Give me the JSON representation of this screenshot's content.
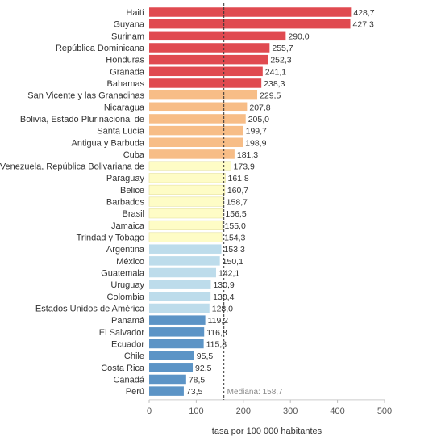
{
  "chart_data": {
    "type": "bar",
    "orientation": "horizontal",
    "categories": [
      "Haití",
      "Guyana",
      "Surinam",
      "República Dominicana",
      "Honduras",
      "Granada",
      "Bahamas",
      "San Vicente y las Granadinas",
      "Nicaragua",
      "Bolivia, Estado Plurinacional de",
      "Santa Lucía",
      "Antigua y Barbuda",
      "Cuba",
      "Venezuela, República Bolivariana de",
      "Paraguay",
      "Belice",
      "Barbados",
      "Brasil",
      "Jamaica",
      "Trindad y Tobago",
      "Argentina",
      "México",
      "Guatemala",
      "Uruguay",
      "Colombia",
      "Estados Unidos de América",
      "Panamá",
      "El Salvador",
      "Ecuador",
      "Chile",
      "Costa Rica",
      "Canadá",
      "Perú"
    ],
    "values": [
      428.7,
      427.3,
      290.0,
      255.7,
      252.3,
      241.1,
      238.3,
      229.5,
      207.8,
      205.0,
      199.7,
      198.9,
      181.3,
      173.9,
      161.8,
      160.7,
      158.7,
      156.5,
      155.0,
      154.3,
      153.3,
      150.1,
      142.1,
      130.9,
      130.4,
      128.0,
      119.2,
      116.8,
      115.8,
      95.5,
      92.5,
      78.5,
      73.5
    ],
    "value_labels": [
      "428,7",
      "427,3",
      "290,0",
      "255,7",
      "252,3",
      "241,1",
      "238,3",
      "229,5",
      "207,8",
      "205,0",
      "199,7",
      "198,9",
      "181,3",
      "173,9",
      "161,8",
      "160,7",
      "158,7",
      "156,5",
      "155,0",
      "154,3",
      "153,3",
      "150,1",
      "142,1",
      "130,9",
      "130,4",
      "128,0",
      "119,2",
      "116,8",
      "115,8",
      "95,5",
      "92,5",
      "78,5",
      "73,5"
    ],
    "groups": [
      0,
      0,
      0,
      0,
      0,
      0,
      0,
      1,
      1,
      1,
      1,
      1,
      1,
      2,
      2,
      2,
      2,
      2,
      2,
      2,
      3,
      3,
      3,
      3,
      3,
      3,
      4,
      4,
      4,
      4,
      4,
      4,
      4
    ],
    "group_colors": [
      "#e04a50",
      "#f7bd87",
      "#fefcc6",
      "#bddceb",
      "#5c94c6"
    ],
    "xlabel": "tasa por 100 000 habitantes",
    "xlim": [
      0,
      500
    ],
    "xticks": [
      0,
      100,
      200,
      300,
      400,
      500
    ],
    "xtick_labels": [
      "0",
      "100",
      "200",
      "300",
      "400",
      "500"
    ],
    "median": {
      "value": 158.7,
      "label": "Mediana: 158,7"
    },
    "grid": false
  }
}
